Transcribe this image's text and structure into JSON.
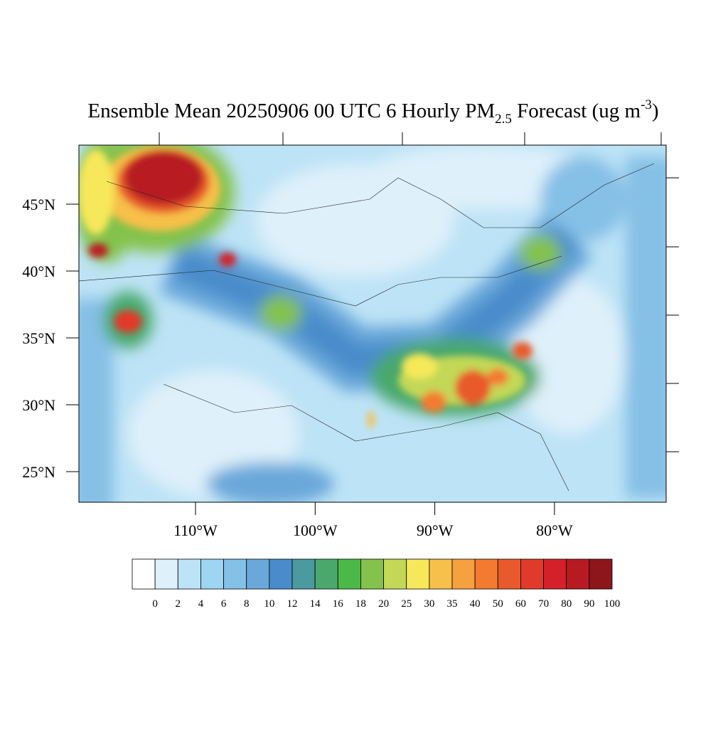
{
  "title": {
    "main": "Ensemble Mean 20250906 00 UTC 6 Hourly PM",
    "subscript": "2.5",
    "middle": " Forecast (ug m",
    "superscript": "-3",
    "end": ")"
  },
  "lat_ticks": [
    {
      "value": 45,
      "label": "45°N"
    },
    {
      "value": 40,
      "label": "40°N"
    },
    {
      "value": 35,
      "label": "35°N"
    },
    {
      "value": 30,
      "label": "30°N"
    },
    {
      "value": 25,
      "label": "25°N"
    }
  ],
  "lon_ticks": [
    {
      "value": -110,
      "label": "110°W"
    },
    {
      "value": -100,
      "label": "100°W"
    },
    {
      "value": -90,
      "label": "90°W"
    },
    {
      "value": -80,
      "label": "80°W"
    }
  ],
  "colorbar": {
    "levels": [
      0,
      2,
      4,
      6,
      8,
      10,
      12,
      14,
      16,
      18,
      20,
      25,
      30,
      35,
      40,
      50,
      60,
      70,
      80,
      90,
      100
    ],
    "colors": [
      "#ffffff",
      "#def0fa",
      "#bde3f6",
      "#9dd5f2",
      "#85c0e6",
      "#6aa8da",
      "#4a8ccb",
      "#4a9aa0",
      "#4aa86c",
      "#4cb848",
      "#84c24c",
      "#c2d856",
      "#f6e85a",
      "#f6c04a",
      "#f6a040",
      "#f47a30",
      "#e85a2c",
      "#e03a2a",
      "#d42028",
      "#b81a22",
      "#8c161a"
    ]
  }
}
